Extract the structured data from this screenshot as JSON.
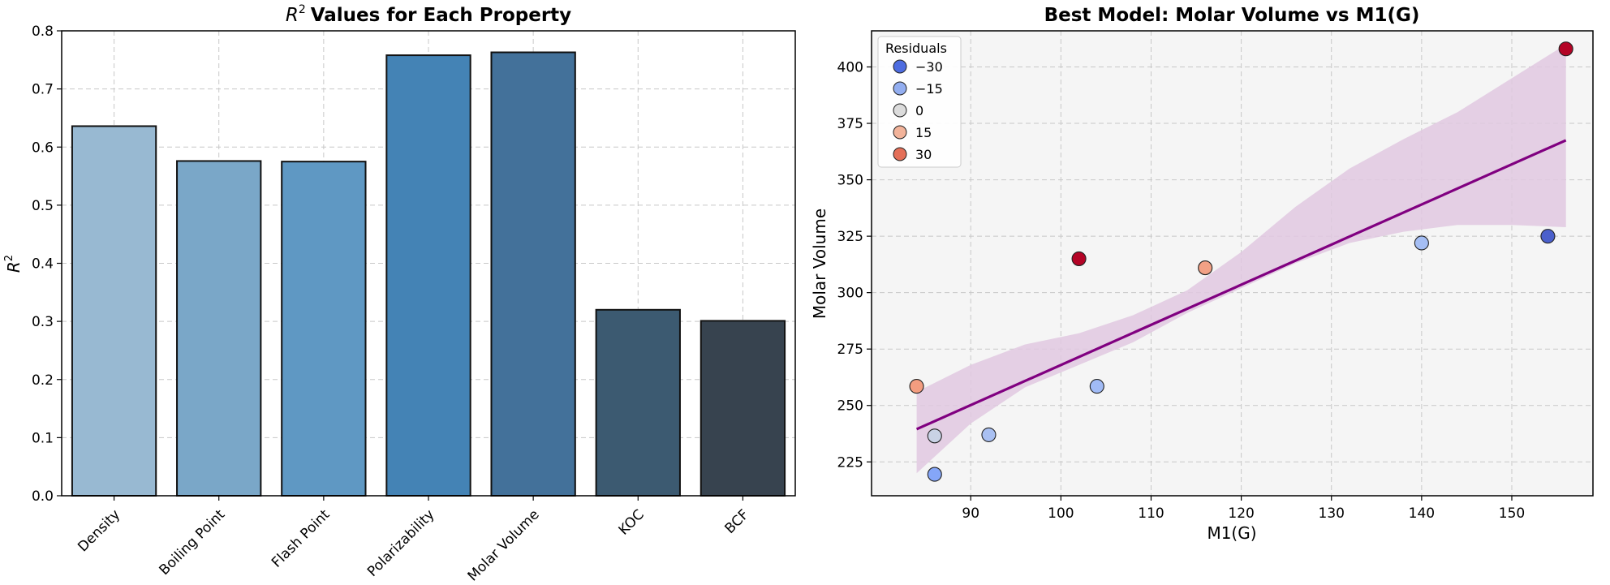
{
  "chart_data": [
    {
      "type": "bar",
      "title_main": "Values for Each Property",
      "title_symbol": "R",
      "title_sup": "2",
      "ylabel_symbol": "R",
      "ylabel_sup": "2",
      "xlabel": "",
      "categories": [
        "Density",
        "Boiling Point",
        "Flash Point",
        "Polarizability",
        "Molar Volume",
        "KOC",
        "BCF"
      ],
      "values": [
        0.636,
        0.576,
        0.575,
        0.758,
        0.763,
        0.32,
        0.301
      ],
      "colors": [
        "#98b9d2",
        "#7aa7c8",
        "#5f98c3",
        "#4483b5",
        "#43719a",
        "#3c5a71",
        "#37434f"
      ],
      "ylim": [
        0,
        0.8
      ],
      "yticks": [
        "0.0",
        "0.1",
        "0.2",
        "0.3",
        "0.4",
        "0.5",
        "0.6",
        "0.7",
        "0.8"
      ],
      "grid": true
    },
    {
      "type": "scatter",
      "title": "Best Model: Molar Volume vs M1(G)",
      "xlabel": "M1(G)",
      "ylabel": "Molar Volume",
      "xlim": [
        79,
        159
      ],
      "ylim": [
        210,
        416
      ],
      "xticks": [
        "90",
        "100",
        "110",
        "120",
        "130",
        "140",
        "150"
      ],
      "yticks": [
        "225",
        "250",
        "275",
        "300",
        "325",
        "350",
        "375",
        "400"
      ],
      "points": [
        {
          "x": 84,
          "y": 258.5,
          "residual": 19
        },
        {
          "x": 86,
          "y": 236.5,
          "residual": -5
        },
        {
          "x": 86,
          "y": 219.5,
          "residual": -22
        },
        {
          "x": 92,
          "y": 237,
          "residual": -13
        },
        {
          "x": 102,
          "y": 315,
          "residual": 41
        },
        {
          "x": 104,
          "y": 258.5,
          "residual": -15
        },
        {
          "x": 116,
          "y": 311,
          "residual": 18
        },
        {
          "x": 140,
          "y": 322,
          "residual": -14
        },
        {
          "x": 154,
          "y": 325,
          "residual": -36
        },
        {
          "x": 156,
          "y": 408,
          "residual": 41
        }
      ],
      "fit_line": {
        "x": [
          84,
          156
        ],
        "y": [
          239.5,
          367.5
        ],
        "color": "#800080"
      },
      "confidence_band": {
        "x": [
          84,
          90,
          96,
          102,
          108,
          114,
          120,
          126,
          132,
          138,
          144,
          150,
          156
        ],
        "upper": [
          256,
          268,
          277,
          282,
          290,
          301,
          318,
          338,
          355,
          368,
          380,
          395,
          410
        ],
        "lower": [
          220,
          242,
          258,
          268,
          278,
          291,
          302,
          313,
          322,
          327,
          330,
          330,
          329
        ],
        "color": "#e0c8e0"
      },
      "legend": {
        "title": "Residuals",
        "position": "top-left",
        "entries": [
          {
            "label": "−30",
            "color": "#4d6ce0"
          },
          {
            "label": "−15",
            "color": "#93aef0"
          },
          {
            "label": "0",
            "color": "#dcdcdc"
          },
          {
            "label": "15",
            "color": "#f2b39a"
          },
          {
            "label": "30",
            "color": "#e46f58"
          }
        ]
      },
      "grid": true
    }
  ]
}
